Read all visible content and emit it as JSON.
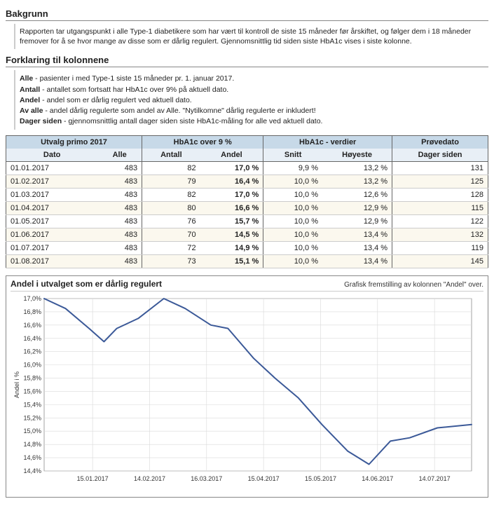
{
  "sections": {
    "bakgrunn_title": "Bakgrunn",
    "bakgrunn_text": "Rapporten tar utgangspunkt i alle Type-1 diabetikere som har vært til kontroll de siste 15 måneder før årskiftet, og følger dem i 18 måneder fremover for å se hvor mange av disse som er dårlig regulert. Gjennomsnittlig tid siden siste HbA1c vises i siste kolonne.",
    "forklaring_title": "Forklaring til kolonnene",
    "defs": [
      {
        "term": "Alle",
        "text": " - pasienter i med Type-1 siste 15 måneder pr. 1. januar 2017."
      },
      {
        "term": "Antall",
        "text": " - antallet som fortsatt har HbA1c over 9% på aktuell dato."
      },
      {
        "term": "Andel",
        "text": " - andel som er dårlig regulert ved aktuell dato."
      },
      {
        "term": "Av alle",
        "text": " - andel dårlig regulerte som andel av Alle. \"Nytilkomne\" dårlig regulerte er inkludert!"
      },
      {
        "term": "Dager siden",
        "text": " - gjennomsnittlig antall dager siden siste HbA1c-måling for alle ved aktuell dato."
      }
    ]
  },
  "table": {
    "groups": [
      {
        "label": "Utvalg primo 2017",
        "span": 2
      },
      {
        "label": "HbA1c over 9 %",
        "span": 2
      },
      {
        "label": "HbA1c - verdier",
        "span": 2
      },
      {
        "label": "Prøvedato",
        "span": 1
      }
    ],
    "cols": [
      "Dato",
      "Alle",
      "Antall",
      "Andel",
      "Snitt",
      "Høyeste",
      "Dager siden"
    ],
    "rows": [
      [
        "01.01.2017",
        "483",
        "82",
        "17,0 %",
        "9,9 %",
        "13,2 %",
        "131"
      ],
      [
        "01.02.2017",
        "483",
        "79",
        "16,4 %",
        "10,0 %",
        "13,2 %",
        "125"
      ],
      [
        "01.03.2017",
        "483",
        "82",
        "17,0 %",
        "10,0 %",
        "12,6 %",
        "128"
      ],
      [
        "01.04.2017",
        "483",
        "80",
        "16,6 %",
        "10,0 %",
        "12,9 %",
        "115"
      ],
      [
        "01.05.2017",
        "483",
        "76",
        "15,7 %",
        "10,0 %",
        "12,9 %",
        "122"
      ],
      [
        "01.06.2017",
        "483",
        "70",
        "14,5 %",
        "10,0 %",
        "13,4 %",
        "132"
      ],
      [
        "01.07.2017",
        "483",
        "72",
        "14,9 %",
        "10,0 %",
        "13,4 %",
        "119"
      ],
      [
        "01.08.2017",
        "483",
        "73",
        "15,1 %",
        "10,0 %",
        "13,4 %",
        "145"
      ]
    ]
  },
  "chart": {
    "title": "Andel i utvalget som er dårlig regulert",
    "subtitle": "Grafisk fremstilling av kolonnen \"Andel\" over.",
    "y_label": "Andel i %",
    "y_min": 14.4,
    "y_max": 17.0,
    "y_step": 0.2,
    "x_labels": [
      "15.01.2017",
      "14.02.2017",
      "16.03.2017",
      "15.04.2017",
      "15.05.2017",
      "14.06.2017",
      "14.07.2017"
    ],
    "series": {
      "color": "#3b5998",
      "width": 2,
      "points": [
        {
          "x": 0.0,
          "y": 17.0
        },
        {
          "x": 0.5,
          "y": 16.85
        },
        {
          "x": 1.05,
          "y": 16.55
        },
        {
          "x": 1.4,
          "y": 16.35
        },
        {
          "x": 1.7,
          "y": 16.55
        },
        {
          "x": 2.2,
          "y": 16.7
        },
        {
          "x": 2.8,
          "y": 17.0
        },
        {
          "x": 3.3,
          "y": 16.85
        },
        {
          "x": 3.9,
          "y": 16.6
        },
        {
          "x": 4.3,
          "y": 16.55
        },
        {
          "x": 4.9,
          "y": 16.1
        },
        {
          "x": 5.4,
          "y": 15.8
        },
        {
          "x": 5.95,
          "y": 15.5
        },
        {
          "x": 6.5,
          "y": 15.1
        },
        {
          "x": 7.1,
          "y": 14.7
        },
        {
          "x": 7.6,
          "y": 14.5
        },
        {
          "x": 8.1,
          "y": 14.85
        },
        {
          "x": 8.55,
          "y": 14.9
        },
        {
          "x": 9.2,
          "y": 15.05
        },
        {
          "x": 10.0,
          "y": 15.1
        }
      ]
    },
    "plot_bg": "#ffffff",
    "grid_color": "#d9d9d9",
    "axis_color": "#666666",
    "tick_font_size": 9
  }
}
